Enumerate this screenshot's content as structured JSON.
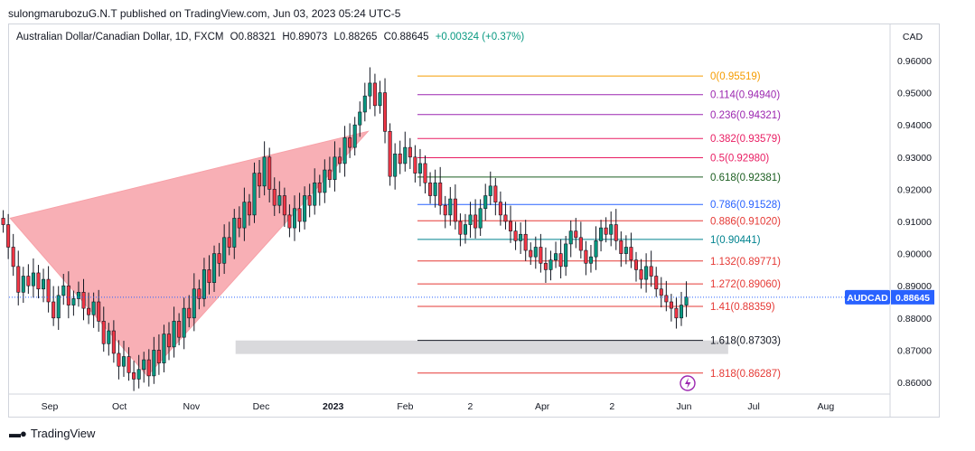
{
  "header": {
    "published": "sulongmarubozuG.N.T published on TradingView.com, Jun 03, 2023 05:24 UTC-5"
  },
  "legend": {
    "name": "Australian Dollar/Canadian Dollar, 1D, FXCM",
    "open": "O0.88321",
    "high": "H0.89073",
    "low": "L0.88265",
    "close": "C0.88645",
    "change": "+0.00324 (+0.37%)"
  },
  "colors": {
    "up": "#089981",
    "down": "#f23645",
    "candle_wick": "#131722",
    "triangle": "#f7a1a8",
    "zone": "#d9d9dc",
    "price_badge": "#2962ff"
  },
  "footer": {
    "brand": "TradingView",
    "logo_icon": "tradingview-logo-icon"
  },
  "chart_data": {
    "type": "candlestick",
    "symbol": "AUDCAD",
    "currency_label": "CAD",
    "last_price": 0.88645,
    "last_price_label": "AUDCAD",
    "last_price_text": "0.88645",
    "y_ticks": [
      "0.96000",
      "0.95000",
      "0.94000",
      "0.93000",
      "0.92000",
      "0.91000",
      "0.90000",
      "0.89000",
      "0.88000",
      "0.87000",
      "0.86000"
    ],
    "x_ticks": [
      "Sep",
      "Oct",
      "Nov",
      "Dec",
      "2023",
      "Feb",
      "2",
      "Apr",
      "2",
      "Jun",
      "Jul",
      "Aug"
    ],
    "ylim": [
      0.8575,
      0.9645
    ],
    "fibonacci": [
      {
        "label": "0(0.95519)",
        "level": 0.95519,
        "color": "#f59c00"
      },
      {
        "label": "0.114(0.94940)",
        "level": 0.9494,
        "color": "#9c27b0"
      },
      {
        "label": "0.236(0.94321)",
        "level": 0.94321,
        "color": "#9c27b0"
      },
      {
        "label": "0.382(0.93579)",
        "level": 0.93579,
        "color": "#e91e63"
      },
      {
        "label": "0.5(0.92980)",
        "level": 0.9298,
        "color": "#e91e63"
      },
      {
        "label": "0.618(0.92381)",
        "level": 0.92381,
        "color": "#1b5e20"
      },
      {
        "label": "0.786(0.91528)",
        "level": 0.91528,
        "color": "#2962ff"
      },
      {
        "label": "0.886(0.91020)",
        "level": 0.9102,
        "color": "#e53935"
      },
      {
        "label": "1(0.90441)",
        "level": 0.90441,
        "color": "#00838f"
      },
      {
        "label": "1.132(0.89771)",
        "level": 0.89771,
        "color": "#e53935"
      },
      {
        "label": "1.272(0.89060)",
        "level": 0.8906,
        "color": "#e53935"
      },
      {
        "label": "1.41(0.88359)",
        "level": 0.88359,
        "color": "#e53935"
      },
      {
        "label": "1.618(0.87303)",
        "level": 0.87303,
        "color": "#131722"
      },
      {
        "label": "1.818(0.86287)",
        "level": 0.86287,
        "color": "#e53935"
      }
    ],
    "triangle_points": [
      {
        "date": "2022-08-15",
        "price": 0.911
      },
      {
        "date": "2022-10-13",
        "price": 0.862
      },
      {
        "date": "2023-01-16",
        "price": 0.938
      }
    ],
    "support_zone": {
      "from": "2022-11-20",
      "to": "2023-06-20",
      "high": 0.873,
      "low": 0.8688
    },
    "closes": [
      0.909,
      0.902,
      0.896,
      0.888,
      0.893,
      0.89,
      0.894,
      0.889,
      0.892,
      0.885,
      0.88,
      0.887,
      0.89,
      0.884,
      0.886,
      0.888,
      0.883,
      0.881,
      0.885,
      0.879,
      0.872,
      0.876,
      0.869,
      0.865,
      0.868,
      0.863,
      0.861,
      0.864,
      0.867,
      0.862,
      0.87,
      0.866,
      0.875,
      0.871,
      0.879,
      0.874,
      0.883,
      0.88,
      0.889,
      0.886,
      0.895,
      0.891,
      0.9,
      0.897,
      0.905,
      0.902,
      0.911,
      0.908,
      0.916,
      0.912,
      0.925,
      0.921,
      0.93,
      0.92,
      0.915,
      0.918,
      0.912,
      0.908,
      0.914,
      0.91,
      0.918,
      0.915,
      0.922,
      0.919,
      0.926,
      0.923,
      0.93,
      0.928,
      0.936,
      0.933,
      0.94,
      0.944,
      0.949,
      0.953,
      0.946,
      0.95,
      0.938,
      0.924,
      0.931,
      0.928,
      0.933,
      0.93,
      0.925,
      0.928,
      0.922,
      0.918,
      0.922,
      0.915,
      0.912,
      0.917,
      0.91,
      0.906,
      0.909,
      0.912,
      0.908,
      0.914,
      0.918,
      0.921,
      0.916,
      0.912,
      0.91,
      0.907,
      0.904,
      0.906,
      0.901,
      0.899,
      0.902,
      0.897,
      0.895,
      0.898,
      0.9,
      0.896,
      0.903,
      0.907,
      0.905,
      0.901,
      0.897,
      0.899,
      0.904,
      0.908,
      0.906,
      0.909,
      0.904,
      0.9,
      0.902,
      0.898,
      0.895,
      0.892,
      0.896,
      0.893,
      0.889,
      0.887,
      0.885,
      0.883,
      0.88,
      0.884,
      0.8865
    ]
  }
}
